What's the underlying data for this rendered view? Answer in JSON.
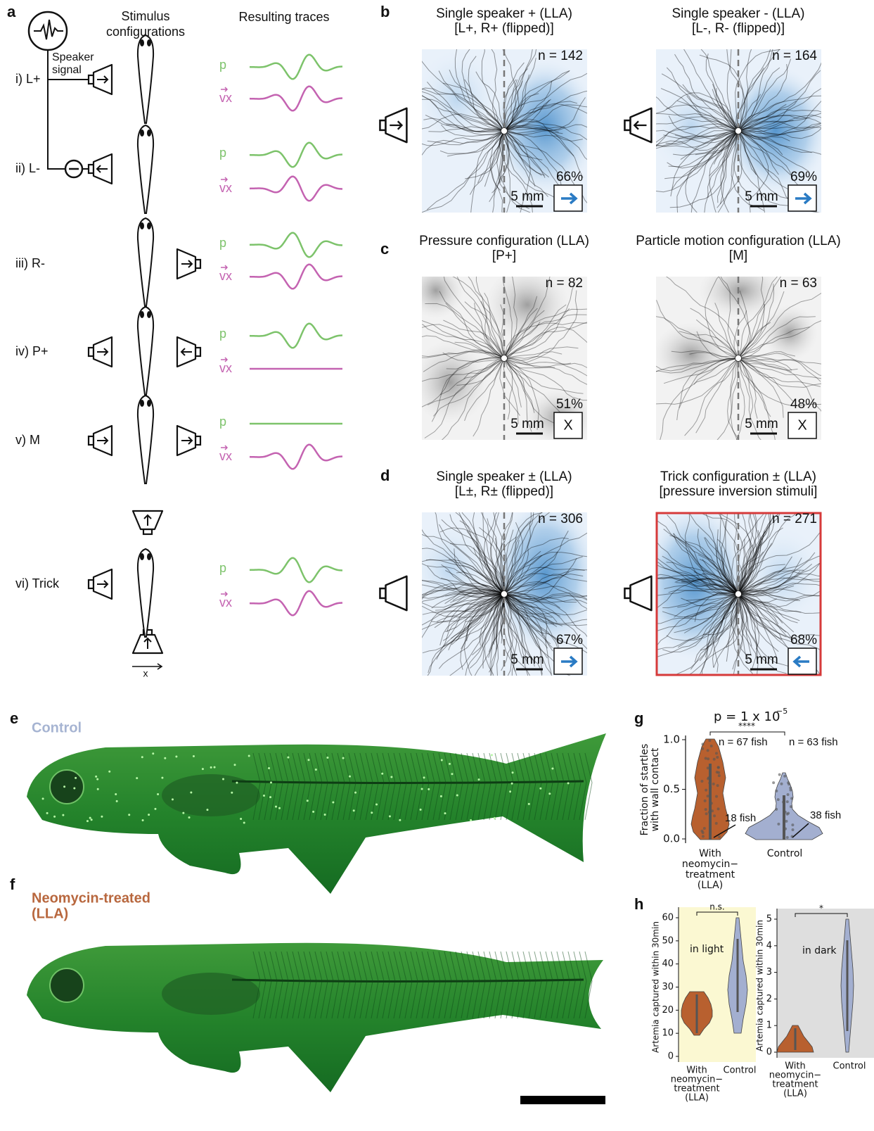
{
  "panel_a": {
    "label": "a",
    "stimulus_header": [
      "Stimulus",
      "configurations"
    ],
    "traces_header": "Resulting traces",
    "speaker_signal": [
      "Speaker",
      "signal"
    ],
    "rows": [
      {
        "label": "i) L+",
        "p": "p",
        "vx": "vx"
      },
      {
        "label": "ii) L-",
        "p": "p",
        "vx": "vx"
      },
      {
        "label": "iii) R-",
        "p": "p",
        "vx": "vx"
      },
      {
        "label": "iv) P+",
        "p": "p",
        "vx": "vx"
      },
      {
        "label": "v) M",
        "p": "p",
        "vx": "vx"
      },
      {
        "label": "vi) Trick",
        "p": "p",
        "vx": "vx"
      }
    ],
    "axis_label": "x"
  },
  "panel_b": {
    "label": "b",
    "maps": [
      {
        "title": "Single speaker + (LLA)",
        "subtitle": "[L+, R+ (flipped)]",
        "n": "n = 142",
        "percent": "66%",
        "scale": "5 mm"
      },
      {
        "title": "Single speaker - (LLA)",
        "subtitle": "[L-, R- (flipped)]",
        "n": "n = 164",
        "percent": "69%",
        "scale": "5 mm"
      }
    ]
  },
  "panel_c": {
    "label": "c",
    "maps": [
      {
        "title": "Pressure configuration (LLA)",
        "subtitle": "[P+]",
        "n": "n = 82",
        "percent": "51%",
        "scale": "5 mm",
        "symbol": "X"
      },
      {
        "title": "Particle motion configuration (LLA)",
        "subtitle": "[M]",
        "n": "n = 63",
        "percent": "48%",
        "scale": "5 mm",
        "symbol": "X"
      }
    ]
  },
  "panel_d": {
    "label": "d",
    "maps": [
      {
        "title": "Single speaker ± (LLA)",
        "subtitle": "[L±, R± (flipped)]",
        "n": "n = 306",
        "percent": "67%",
        "scale": "5 mm"
      },
      {
        "title": "Trick configuration ± (LLA)",
        "subtitle": "[pressure inversion stimuli]",
        "n": "n = 271",
        "percent": "68%",
        "scale": "5 mm"
      }
    ]
  },
  "panel_e": {
    "label": "e",
    "caption": "Control"
  },
  "panel_f": {
    "label": "f",
    "caption": [
      "Neomycin-treated",
      "(LLA)"
    ]
  },
  "panel_g": {
    "label": "g",
    "p_value": "p = 1 x 10",
    "p_exponent": "−5",
    "significance": "****",
    "y_label": [
      "Fraction of startles",
      "with wall contact"
    ],
    "yticks": [
      "1.0",
      "0.5",
      "0.0"
    ],
    "groups": [
      {
        "label": [
          "With",
          "neomycin−",
          "treatment",
          "(LLA)"
        ],
        "n": "n = 67 fish",
        "zero_count": "18 fish"
      },
      {
        "label": [
          "Control"
        ],
        "n": "n = 63 fish",
        "zero_count": "38 fish"
      }
    ]
  },
  "panel_h": {
    "label": "h",
    "plots": [
      {
        "condition": "in light",
        "significance": "n.s.",
        "y_label": "Artemia captured within 30min",
        "yticks": [
          "60",
          "50",
          "40",
          "30",
          "20",
          "10",
          "0"
        ],
        "x_labels": [
          [
            "With",
            "neomycin−",
            "treatment",
            "(LLA)"
          ],
          [
            "Control"
          ]
        ]
      },
      {
        "condition": "in dark",
        "significance": "*",
        "y_label": "Artemia captured within 30min",
        "yticks": [
          "5",
          "4",
          "3",
          "2",
          "1",
          "0"
        ],
        "x_labels": [
          [
            "With",
            "neomycin−",
            "treatment",
            "(LLA)"
          ],
          [
            "Control"
          ]
        ]
      }
    ]
  }
}
